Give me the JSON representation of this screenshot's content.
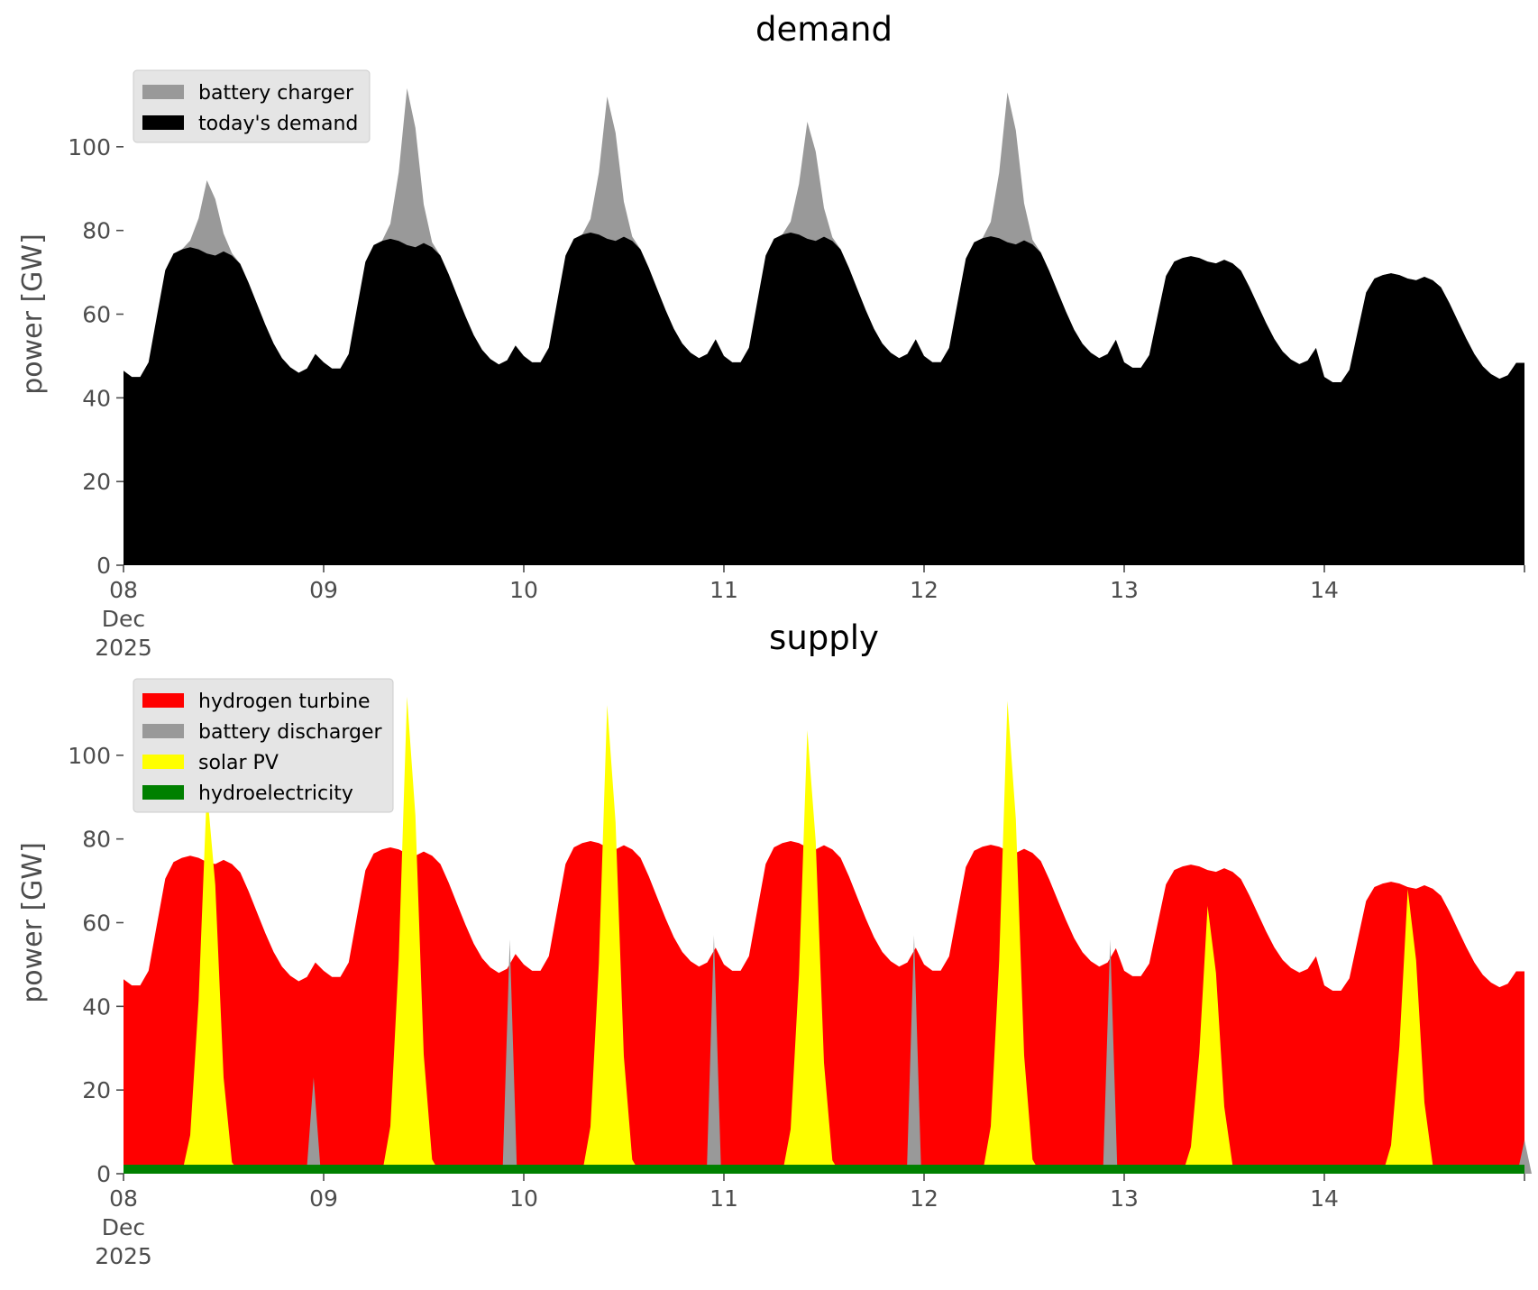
{
  "chart_data": [
    {
      "name": "demand",
      "type": "area",
      "title": "demand",
      "ylabel": "power [GW]",
      "xlabel": "",
      "ylim": [
        0,
        120
      ],
      "yticks": [
        0,
        20,
        40,
        60,
        80,
        100
      ],
      "x_days": [
        0,
        7
      ],
      "x_step_hours": 1,
      "xtick_labels": [
        {
          "day": 0,
          "lines": [
            "08",
            "Dec",
            "2025"
          ]
        },
        {
          "day": 1,
          "lines": [
            "09"
          ]
        },
        {
          "day": 2,
          "lines": [
            "10"
          ]
        },
        {
          "day": 3,
          "lines": [
            "11"
          ]
        },
        {
          "day": 4,
          "lines": [
            "12"
          ]
        },
        {
          "day": 5,
          "lines": [
            "13"
          ]
        },
        {
          "day": 6,
          "lines": [
            "14"
          ]
        }
      ],
      "series": [
        {
          "name": "today's demand",
          "legend": "today's demand",
          "color": "#000000",
          "shape": "demand",
          "daily_scale": [
            1.0,
            1.0,
            1.0,
            1.0,
            0.97,
            0.86,
            0.84
          ],
          "daily_min": [
            46.5,
            48.5,
            50.0,
            50.0,
            50.0,
            48.5,
            45.0
          ]
        },
        {
          "name": "battery charger",
          "legend": "battery charger",
          "color": "#999999",
          "shape": "peak",
          "daily_peak": [
            92,
            114,
            112,
            106,
            113,
            0,
            68
          ]
        }
      ],
      "legend_order": [
        "battery charger",
        "today's demand"
      ],
      "legend_position": "top-left"
    },
    {
      "name": "supply",
      "type": "area",
      "title": "supply",
      "ylabel": "power [GW]",
      "xlabel": "",
      "ylim": [
        0,
        120
      ],
      "yticks": [
        0,
        20,
        40,
        60,
        80,
        100
      ],
      "x_days": [
        0,
        7
      ],
      "x_step_hours": 1,
      "xtick_labels": [
        {
          "day": 0,
          "lines": [
            "08",
            "Dec",
            "2025"
          ]
        },
        {
          "day": 1,
          "lines": [
            "09"
          ]
        },
        {
          "day": 2,
          "lines": [
            "10"
          ]
        },
        {
          "day": 3,
          "lines": [
            "11"
          ]
        },
        {
          "day": 4,
          "lines": [
            "12"
          ]
        },
        {
          "day": 5,
          "lines": [
            "13"
          ]
        },
        {
          "day": 6,
          "lines": [
            "14"
          ]
        }
      ],
      "series": [
        {
          "name": "hydrogen turbine",
          "legend": "hydrogen turbine",
          "color": "#ff0000",
          "shape": "demand"
        },
        {
          "name": "battery discharger",
          "legend": "battery discharger",
          "color": "#999999",
          "shape": "spike",
          "spikes": [
            {
              "day": 0.95,
              "value": 23
            },
            {
              "day": 1.93,
              "value": 56
            },
            {
              "day": 2.95,
              "value": 57
            },
            {
              "day": 3.95,
              "value": 57
            },
            {
              "day": 4.93,
              "value": 56
            },
            {
              "day": 7.0,
              "value": 8
            }
          ]
        },
        {
          "name": "solar PV",
          "legend": "solar PV",
          "color": "#ffff00",
          "shape": "solar",
          "daily_peak": [
            92,
            114,
            112,
            106,
            113,
            64,
            68
          ]
        },
        {
          "name": "hydroelectricity",
          "legend": "hydroelectricity",
          "color": "#008000",
          "shape": "flat",
          "value": 1.5
        }
      ],
      "legend_order": [
        "hydrogen turbine",
        "battery discharger",
        "solar PV",
        "hydroelectricity"
      ],
      "legend_position": "top-left"
    }
  ]
}
